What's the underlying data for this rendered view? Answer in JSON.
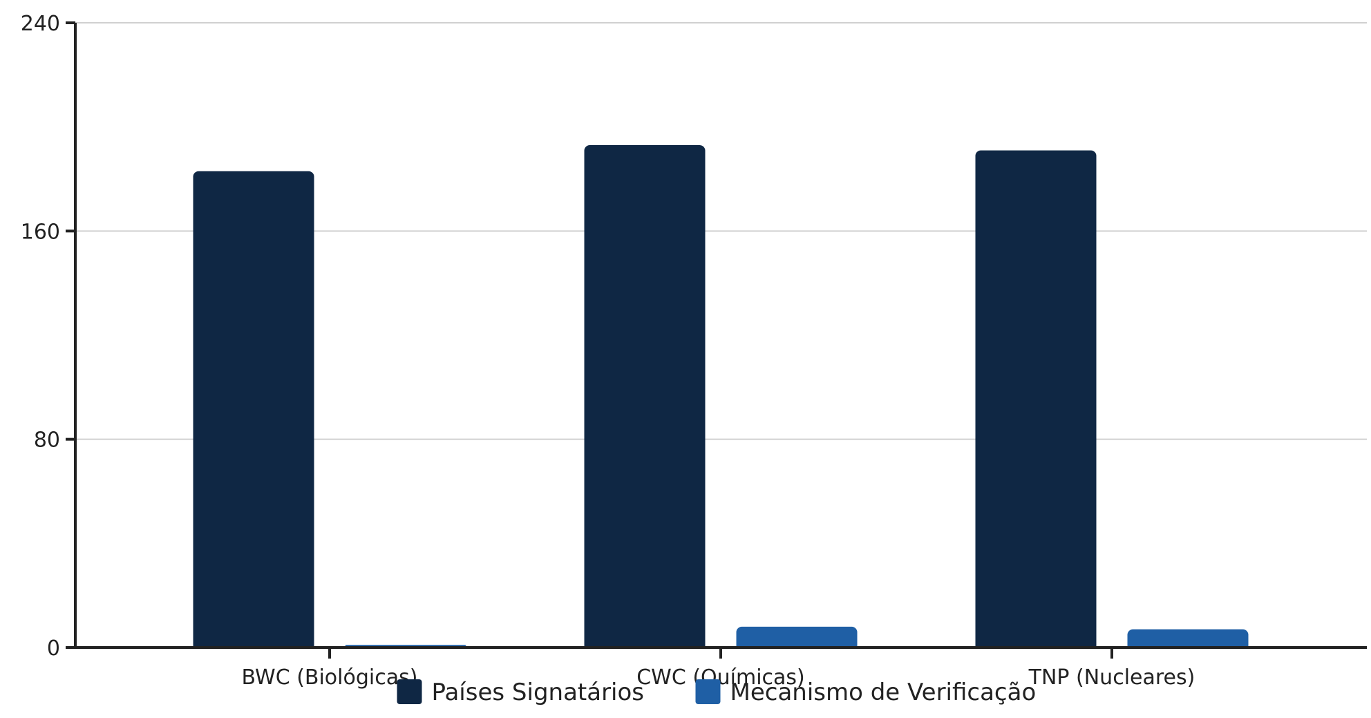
{
  "chart_data": {
    "type": "bar",
    "title": "",
    "xlabel": "",
    "ylabel": "",
    "categories": [
      "BWC (Biológicas)",
      "CWC (Químicas)",
      "TNP (Nucleares)"
    ],
    "series": [
      {
        "name": "Países Signatários",
        "values": [
          183,
          193,
          191
        ],
        "color": "#0f2744"
      },
      {
        "name": "Mecanismo de Verificação",
        "values": [
          1,
          8,
          7
        ],
        "color": "#1f5fa5"
      }
    ],
    "ylim": [
      0,
      240
    ],
    "yticks": [
      0,
      80,
      160,
      240
    ],
    "grid": true,
    "legend_position": "bottom-center",
    "colors": {
      "axis": "#222222",
      "grid": "#d0d0d0"
    }
  }
}
